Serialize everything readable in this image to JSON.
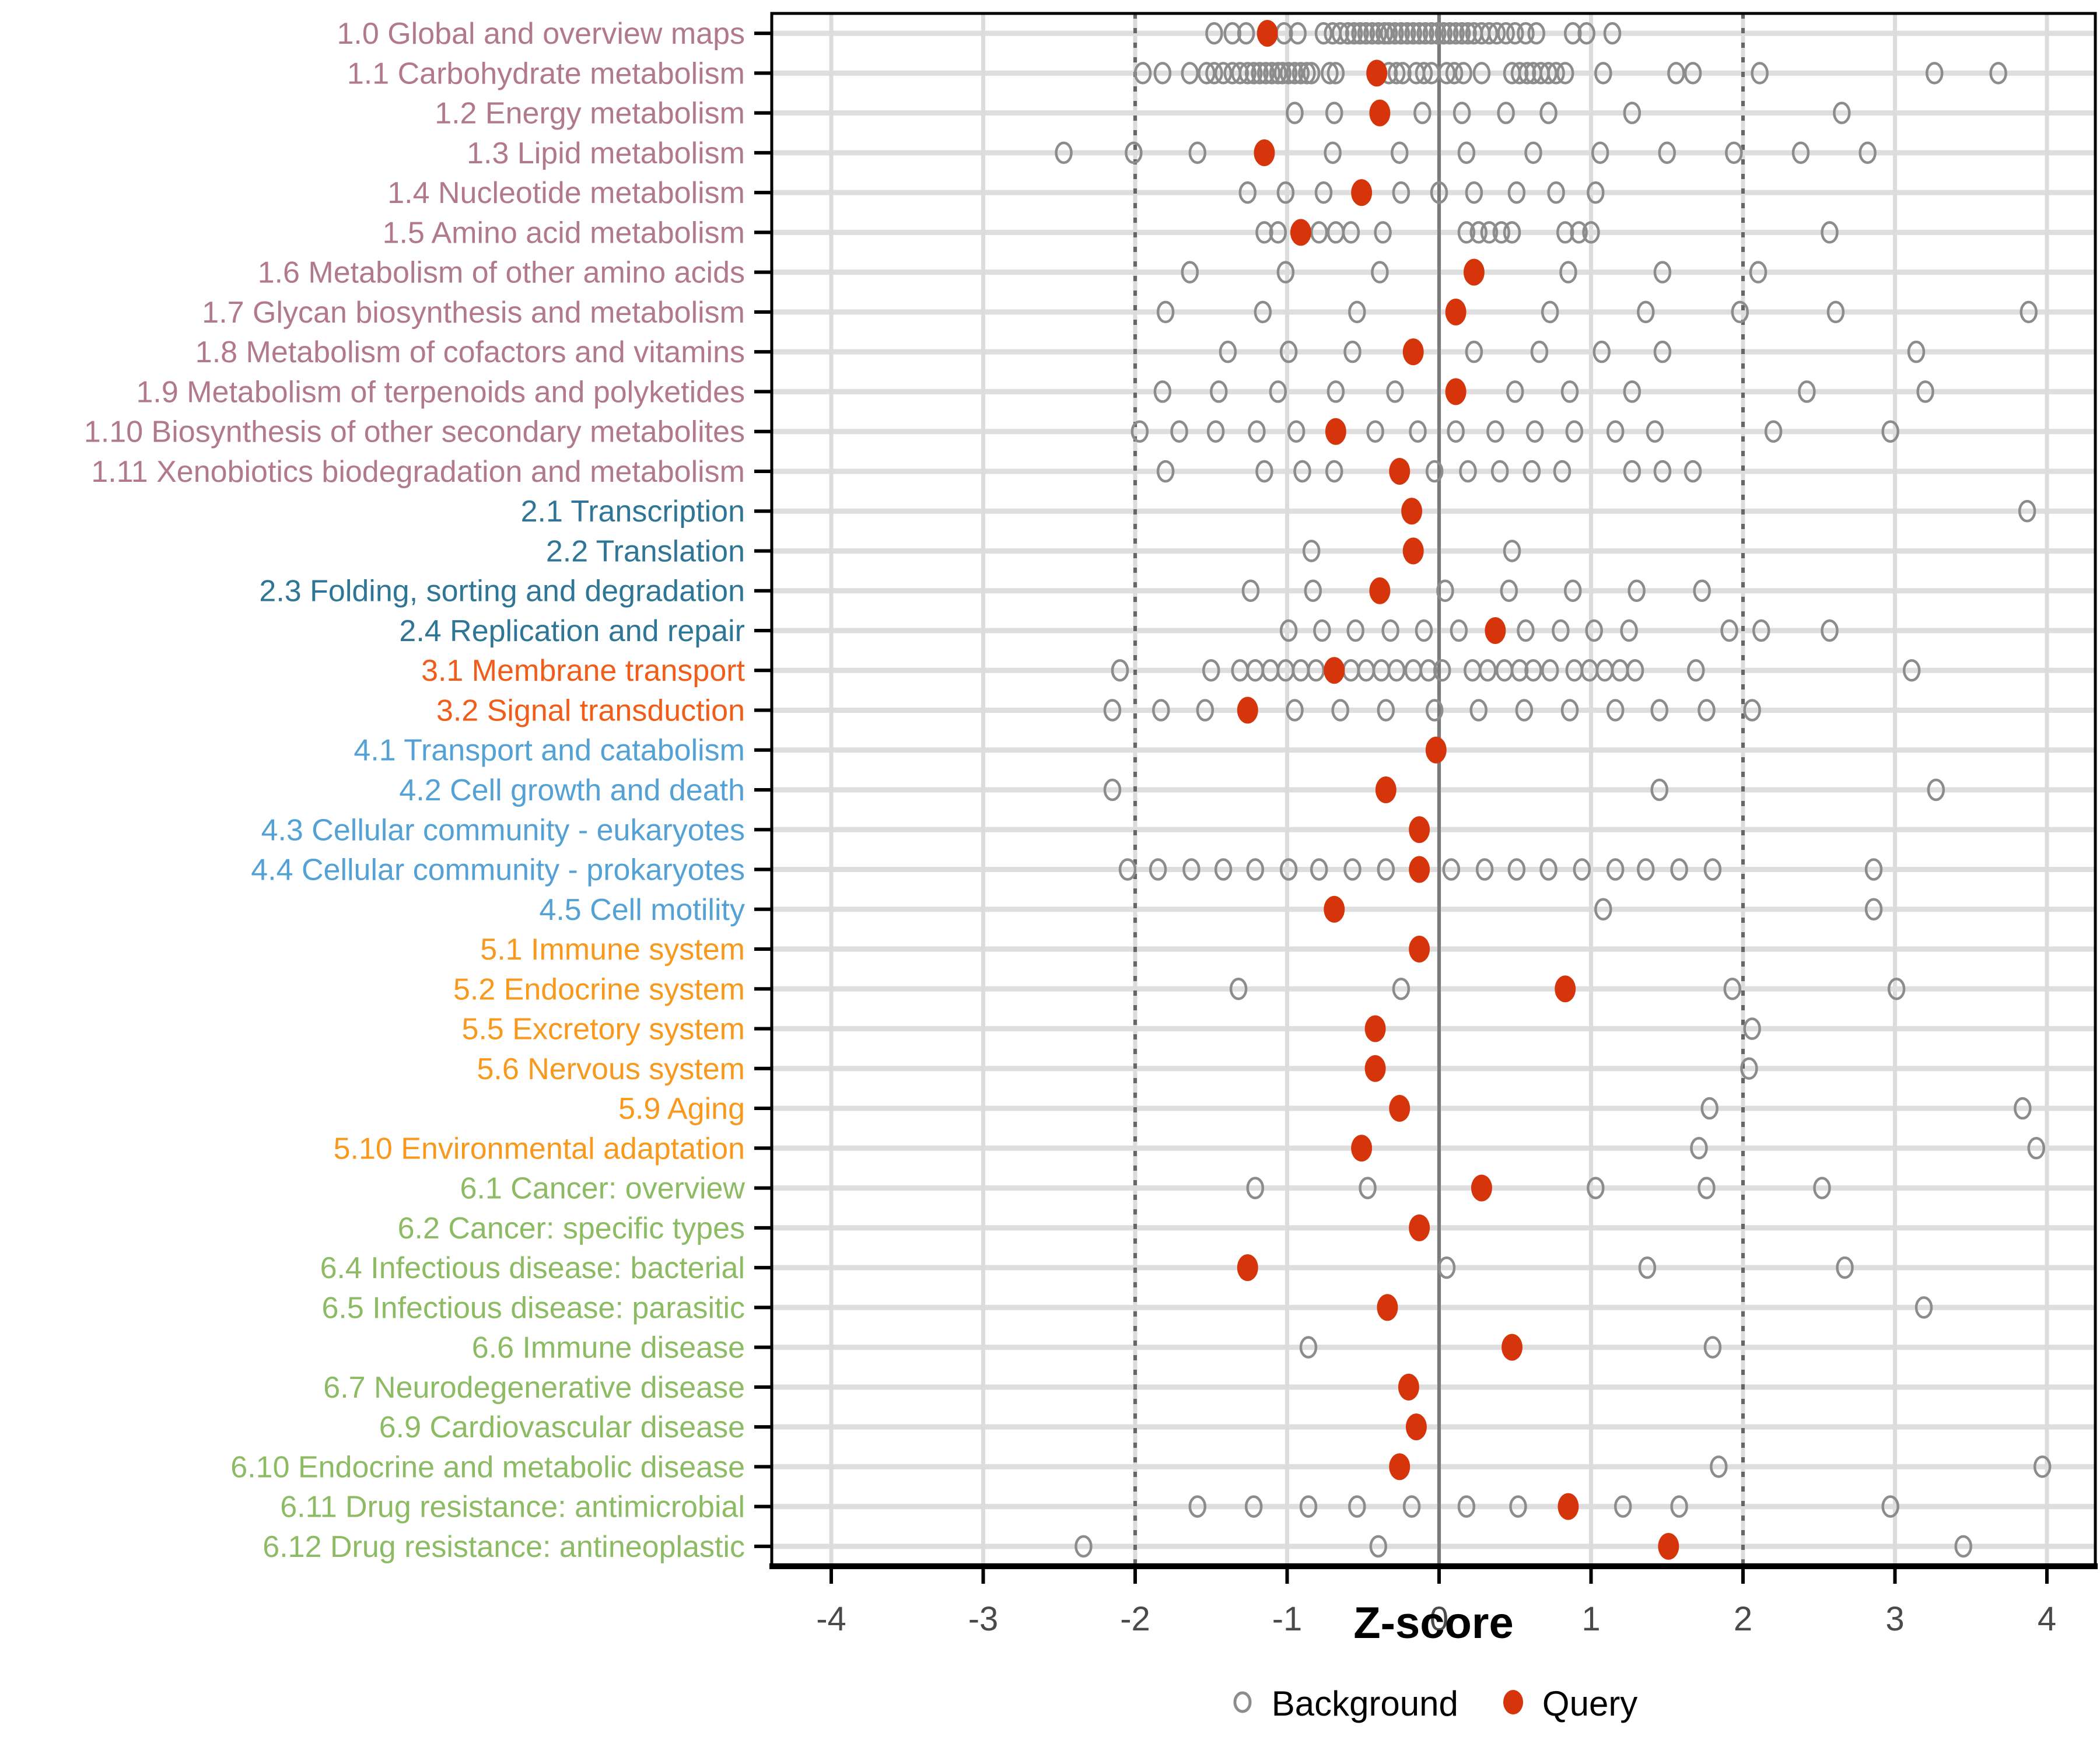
{
  "axis": {
    "x_label": "Z-score",
    "x_ticks": [
      -4,
      -3,
      -2,
      -1,
      0,
      1,
      2,
      3,
      4
    ],
    "x_min": -4.39,
    "x_max": 4.31,
    "zero_line": 0,
    "dashed_lines": [
      -2,
      2
    ]
  },
  "legend": {
    "items": [
      {
        "label": "Background",
        "marker": "open-circle"
      },
      {
        "label": "Query",
        "marker": "filled-circle"
      }
    ]
  },
  "colors": {
    "query": "#d6350c",
    "background_stroke": "#8c8c8c",
    "grid_major": "#dcdcdc",
    "row_band": "#dedede",
    "zero_line": "#7a7a7a",
    "dashed_line": "#666666",
    "axis_text": "#4a4a4a",
    "panel_border": "#000000",
    "groups": {
      "1": "#b1798b",
      "2": "#2e7596",
      "3": "#f25c19",
      "4": "#54a1d5",
      "5": "#f8991d",
      "6": "#8cbb64"
    }
  },
  "chart_data": {
    "type": "scatter",
    "title": "",
    "xlabel": "Z-score",
    "ylabel": "",
    "xlim": [
      -4.39,
      4.31
    ],
    "x_ticks": [
      -4,
      -3,
      -2,
      -1,
      0,
      1,
      2,
      3,
      4
    ],
    "grid": true,
    "legend_position": "bottom",
    "reference_lines": {
      "solid": [
        0
      ],
      "dashed": [
        -2,
        2
      ]
    },
    "series_names": [
      "Background",
      "Query"
    ],
    "rows": [
      {
        "label": "1.0 Global and overview maps",
        "group": "1",
        "query": -1.13,
        "background": [
          -1.48,
          -1.36,
          -1.27,
          -1.02,
          -0.93,
          -0.76,
          -0.7,
          -0.65,
          -0.6,
          -0.56,
          -0.52,
          -0.48,
          -0.44,
          -0.4,
          -0.36,
          -0.33,
          -0.29,
          -0.25,
          -0.21,
          -0.17,
          -0.13,
          -0.09,
          -0.05,
          -0.01,
          0.03,
          0.07,
          0.11,
          0.15,
          0.19,
          0.23,
          0.28,
          0.33,
          0.38,
          0.44,
          0.5,
          0.57,
          0.64,
          0.88,
          0.97,
          1.14
        ]
      },
      {
        "label": "1.1 Carbohydrate metabolism",
        "group": "1",
        "query": -0.41,
        "background": [
          -1.95,
          -1.82,
          -1.64,
          -1.53,
          -1.48,
          -1.42,
          -1.36,
          -1.31,
          -1.26,
          -1.22,
          -1.18,
          -1.14,
          -1.1,
          -1.06,
          -1.03,
          -0.99,
          -0.95,
          -0.91,
          -0.87,
          -0.84,
          -0.72,
          -0.68,
          -0.33,
          -0.28,
          -0.24,
          -0.15,
          -0.1,
          -0.05,
          0.05,
          0.1,
          0.16,
          0.28,
          0.48,
          0.53,
          0.58,
          0.62,
          0.67,
          0.72,
          0.77,
          0.83,
          1.08,
          1.56,
          1.67,
          2.11,
          3.26,
          3.68
        ]
      },
      {
        "label": "1.2 Energy metabolism",
        "group": "1",
        "query": -0.39,
        "background": [
          -0.95,
          -0.69,
          -0.11,
          0.15,
          0.44,
          0.72,
          1.27,
          2.65
        ]
      },
      {
        "label": "1.3 Lipid metabolism",
        "group": "1",
        "query": -1.15,
        "background": [
          -2.47,
          -2.01,
          -1.59,
          -0.7,
          -0.26,
          0.18,
          0.62,
          1.06,
          1.5,
          1.94,
          2.38,
          2.82
        ]
      },
      {
        "label": "1.4 Nucleotide metabolism",
        "group": "1",
        "query": -0.51,
        "background": [
          -1.26,
          -1.01,
          -0.76,
          -0.25,
          0.0,
          0.23,
          0.51,
          0.77,
          1.03
        ]
      },
      {
        "label": "1.5 Amino acid metabolism",
        "group": "1",
        "query": -0.91,
        "background": [
          -1.15,
          -1.06,
          -0.79,
          -0.68,
          -0.58,
          -0.37,
          0.18,
          0.26,
          0.33,
          0.41,
          0.48,
          0.83,
          0.92,
          1.0,
          2.57
        ]
      },
      {
        "label": "1.6 Metabolism of other amino acids",
        "group": "1",
        "query": 0.23,
        "background": [
          -1.64,
          -1.01,
          -0.39,
          0.85,
          1.47,
          2.1
        ]
      },
      {
        "label": "1.7 Glycan biosynthesis and metabolism",
        "group": "1",
        "query": 0.11,
        "background": [
          -1.8,
          -1.16,
          -0.54,
          0.73,
          1.36,
          1.98,
          2.61,
          3.88
        ]
      },
      {
        "label": "1.8 Metabolism of cofactors and vitamins",
        "group": "1",
        "query": -0.17,
        "background": [
          -1.39,
          -0.99,
          -0.57,
          0.23,
          0.66,
          1.07,
          1.47,
          3.14
        ]
      },
      {
        "label": "1.9 Metabolism of terpenoids and polyketides",
        "group": "1",
        "query": 0.11,
        "background": [
          -1.82,
          -1.45,
          -1.06,
          -0.68,
          -0.29,
          0.5,
          0.86,
          1.27,
          2.42,
          3.2
        ]
      },
      {
        "label": "1.10 Biosynthesis of other secondary metabolites",
        "group": "1",
        "query": -0.68,
        "background": [
          -1.97,
          -1.71,
          -1.47,
          -1.2,
          -0.94,
          -0.42,
          -0.14,
          0.11,
          0.37,
          0.63,
          0.89,
          1.16,
          1.42,
          2.2,
          2.97
        ]
      },
      {
        "label": "1.11 Xenobiotics biodegradation and metabolism",
        "group": "1",
        "query": -0.26,
        "background": [
          -1.8,
          -1.15,
          -0.9,
          -0.69,
          -0.03,
          0.19,
          0.4,
          0.61,
          0.81,
          1.27,
          1.47,
          1.67
        ]
      },
      {
        "label": "2.1 Transcription",
        "group": "2",
        "query": -0.18,
        "background": [
          3.87
        ]
      },
      {
        "label": "2.2 Translation",
        "group": "2",
        "query": -0.17,
        "background": [
          -0.84,
          0.48
        ]
      },
      {
        "label": "2.3 Folding, sorting and degradation",
        "group": "2",
        "query": -0.39,
        "background": [
          -1.24,
          -0.83,
          0.04,
          0.46,
          0.88,
          1.3,
          1.73
        ]
      },
      {
        "label": "2.4 Replication and repair",
        "group": "2",
        "query": 0.37,
        "background": [
          -0.99,
          -0.77,
          -0.55,
          -0.32,
          -0.1,
          0.13,
          0.57,
          0.8,
          1.02,
          1.25,
          1.91,
          2.12,
          2.57
        ]
      },
      {
        "label": "3.1 Membrane transport",
        "group": "3",
        "query": -0.69,
        "background": [
          -2.1,
          -1.5,
          -1.31,
          -1.21,
          -1.11,
          -1.01,
          -0.91,
          -0.81,
          -0.58,
          -0.48,
          -0.38,
          -0.28,
          -0.17,
          -0.07,
          0.02,
          0.22,
          0.32,
          0.43,
          0.53,
          0.62,
          0.73,
          0.89,
          0.99,
          1.09,
          1.19,
          1.29,
          1.69,
          3.11
        ]
      },
      {
        "label": "3.2 Signal transduction",
        "group": "3",
        "query": -1.26,
        "background": [
          -2.15,
          -1.83,
          -1.54,
          -0.95,
          -0.65,
          -0.35,
          -0.03,
          0.26,
          0.56,
          0.86,
          1.16,
          1.45,
          1.76,
          2.06
        ]
      },
      {
        "label": "4.1 Transport and catabolism",
        "group": "4",
        "query": -0.02,
        "background": []
      },
      {
        "label": "4.2 Cell growth and death",
        "group": "4",
        "query": -0.35,
        "background": [
          -2.15,
          1.45,
          3.27
        ]
      },
      {
        "label": "4.3 Cellular community - eukaryotes",
        "group": "4",
        "query": -0.13,
        "background": []
      },
      {
        "label": "4.4 Cellular community - prokaryotes",
        "group": "4",
        "query": -0.13,
        "background": [
          -2.05,
          -1.85,
          -1.63,
          -1.42,
          -1.21,
          -0.99,
          -0.79,
          -0.57,
          -0.35,
          0.08,
          0.3,
          0.51,
          0.72,
          0.94,
          1.16,
          1.36,
          1.58,
          1.8,
          2.86
        ]
      },
      {
        "label": "4.5 Cell motility",
        "group": "4",
        "query": -0.69,
        "background": [
          1.08,
          2.86
        ]
      },
      {
        "label": "5.1 Immune system",
        "group": "5",
        "query": -0.13,
        "background": []
      },
      {
        "label": "5.2 Endocrine system",
        "group": "5",
        "query": 0.83,
        "background": [
          -1.32,
          -0.25,
          1.93,
          3.01
        ]
      },
      {
        "label": "5.5 Excretory system",
        "group": "5",
        "query": -0.42,
        "background": [
          2.06
        ]
      },
      {
        "label": "5.6 Nervous system",
        "group": "5",
        "query": -0.42,
        "background": [
          2.04
        ]
      },
      {
        "label": "5.9 Aging",
        "group": "5",
        "query": -0.26,
        "background": [
          1.78,
          3.84
        ]
      },
      {
        "label": "5.10 Environmental adaptation",
        "group": "5",
        "query": -0.51,
        "background": [
          1.71,
          3.93
        ]
      },
      {
        "label": "6.1 Cancer: overview",
        "group": "6",
        "query": 0.28,
        "background": [
          -1.21,
          -0.47,
          1.03,
          1.76,
          2.52
        ]
      },
      {
        "label": "6.2 Cancer: specific types",
        "group": "6",
        "query": -0.13,
        "background": []
      },
      {
        "label": "6.4 Infectious disease: bacterial",
        "group": "6",
        "query": -1.26,
        "background": [
          0.05,
          1.37,
          2.67
        ]
      },
      {
        "label": "6.5 Infectious disease: parasitic",
        "group": "6",
        "query": -0.34,
        "background": [
          3.19
        ]
      },
      {
        "label": "6.6 Immune disease",
        "group": "6",
        "query": 0.48,
        "background": [
          -0.86,
          1.8
        ]
      },
      {
        "label": "6.7 Neurodegenerative disease",
        "group": "6",
        "query": -0.2,
        "background": []
      },
      {
        "label": "6.9 Cardiovascular disease",
        "group": "6",
        "query": -0.15,
        "background": []
      },
      {
        "label": "6.10 Endocrine and metabolic disease",
        "group": "6",
        "query": -0.26,
        "background": [
          1.84,
          3.97
        ]
      },
      {
        "label": "6.11 Drug resistance: antimicrobial",
        "group": "6",
        "query": 0.85,
        "background": [
          -1.59,
          -1.22,
          -0.86,
          -0.54,
          -0.18,
          0.18,
          0.52,
          1.21,
          1.58,
          2.97
        ]
      },
      {
        "label": "6.12 Drug resistance: antineoplastic",
        "group": "6",
        "query": 1.51,
        "background": [
          -2.34,
          -0.4,
          3.45
        ]
      }
    ]
  }
}
